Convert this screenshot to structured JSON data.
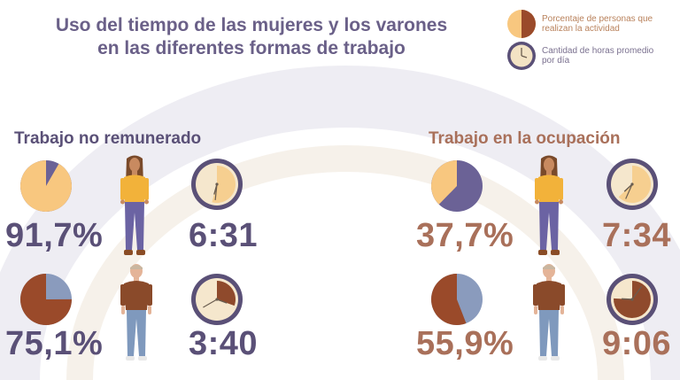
{
  "header": {
    "title_line1": "Uso del tiempo de las mujeres y los varones",
    "title_line2": "en las diferentes formas de trabajo"
  },
  "legend": {
    "pct_label": "Porcentaje de personas que realizan la actividad",
    "hours_label": "Cantidad de horas promedio por día"
  },
  "colors": {
    "title": "#6a6088",
    "purple_text": "#5a5077",
    "brown_text": "#a9705a",
    "women_pie": "#f8c77f",
    "women_pie_rest": "#6b6296",
    "men_pie": "#9a4a2a",
    "men_pie_rest": "#8a9bbd",
    "arc_band": "#ecebf1"
  },
  "chart_data": [
    {
      "type": "pie",
      "title": "Trabajo no remunerado",
      "series": [
        {
          "name": "Mujeres",
          "value": 91.7,
          "label": "91,7%",
          "hours": "6:31"
        },
        {
          "name": "Varones",
          "value": 75.1,
          "label": "75,1%",
          "hours": "3:40"
        }
      ]
    },
    {
      "type": "pie",
      "title": "Trabajo en la ocupación",
      "series": [
        {
          "name": "Mujeres",
          "value": 37.7,
          "label": "37,7%",
          "hours": "7:34"
        },
        {
          "name": "Varones",
          "value": 55.9,
          "label": "55,9%",
          "hours": "9:06"
        }
      ]
    }
  ]
}
